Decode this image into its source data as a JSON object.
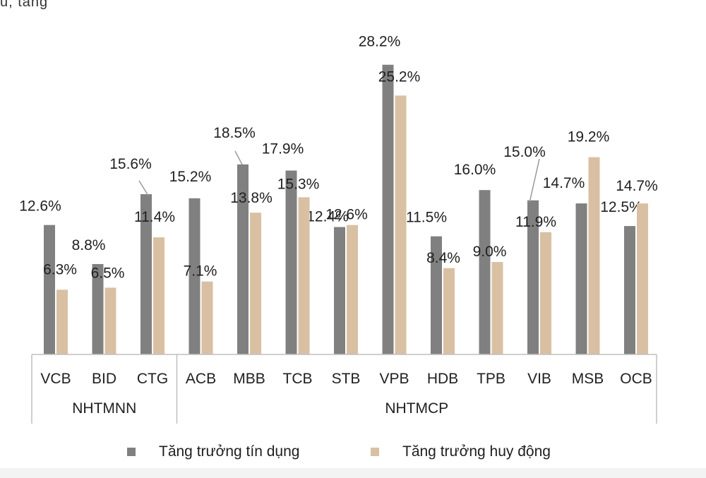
{
  "page_fragment": "u, tăng",
  "chart_data": {
    "type": "bar",
    "categories": [
      "VCB",
      "BID",
      "CTG",
      "ACB",
      "MBB",
      "TCB",
      "STB",
      "VPB",
      "HDB",
      "TPB",
      "VIB",
      "MSB",
      "OCB"
    ],
    "groups": [
      {
        "label": "NHTMNN",
        "categories": [
          "VCB",
          "BID",
          "CTG"
        ]
      },
      {
        "label": "NHTMCP",
        "categories": [
          "ACB",
          "MBB",
          "TCB",
          "STB",
          "VPB",
          "HDB",
          "TPB",
          "VIB",
          "MSB",
          "OCB"
        ]
      }
    ],
    "series": [
      {
        "name": "Tăng trưởng tín dụng",
        "color": "#808080",
        "values": [
          12.6,
          8.8,
          15.6,
          15.2,
          18.5,
          17.9,
          12.4,
          28.2,
          11.5,
          16.0,
          15.0,
          14.7,
          12.5
        ],
        "labels": [
          "12.6%",
          "8.8%",
          "15.6%",
          "15.2%",
          "18.5%",
          "17.9%",
          "12.4%",
          "28.2%",
          "11.5%",
          "16.0%",
          "15.0%",
          "14.7%",
          "12.5%"
        ]
      },
      {
        "name": "Tăng trưởng huy động",
        "color": "#d9c0a3",
        "values": [
          6.3,
          6.5,
          11.4,
          7.1,
          13.8,
          15.3,
          12.6,
          25.2,
          8.4,
          9.0,
          11.9,
          19.2,
          14.7
        ],
        "labels": [
          "6.3%",
          "6.5%",
          "11.4%",
          "7.1%",
          "13.8%",
          "15.3%",
          "12.6%",
          "25.2%",
          "8.4%",
          "9.0%",
          "11.9%",
          "19.2%",
          "14.7%"
        ]
      }
    ],
    "ylim": [
      0,
      30
    ],
    "title": "",
    "xlabel": "",
    "ylabel": "",
    "grid": false,
    "legend_position": "bottom"
  }
}
